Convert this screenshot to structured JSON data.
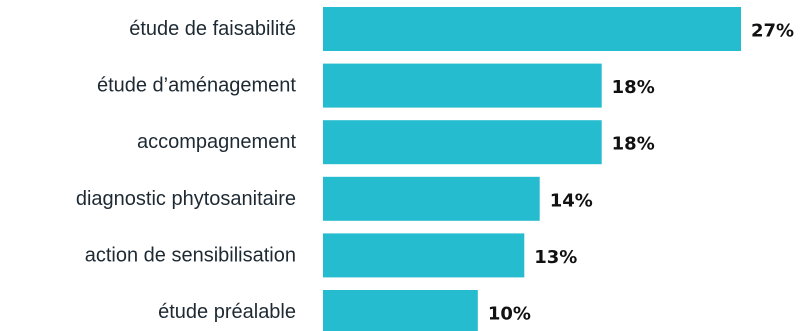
{
  "colors": {
    "bar": "#26bccf",
    "text": "#1e2a33",
    "value_text": "#111111"
  },
  "chart_data": {
    "type": "bar",
    "orientation": "horizontal",
    "categories": [
      "étude de faisabilité",
      "étude d’aménagement",
      "accompagnement",
      "diagnostic phytosanitaire",
      "action de sensibilisation",
      "étude préalable"
    ],
    "values": [
      27,
      18,
      18,
      14,
      13,
      10
    ],
    "value_labels": [
      "27%",
      "18%",
      "18%",
      "14%",
      "13%",
      "10%"
    ],
    "unit": "%",
    "xlim": [
      0,
      27
    ],
    "grid": false,
    "legend": "none"
  }
}
